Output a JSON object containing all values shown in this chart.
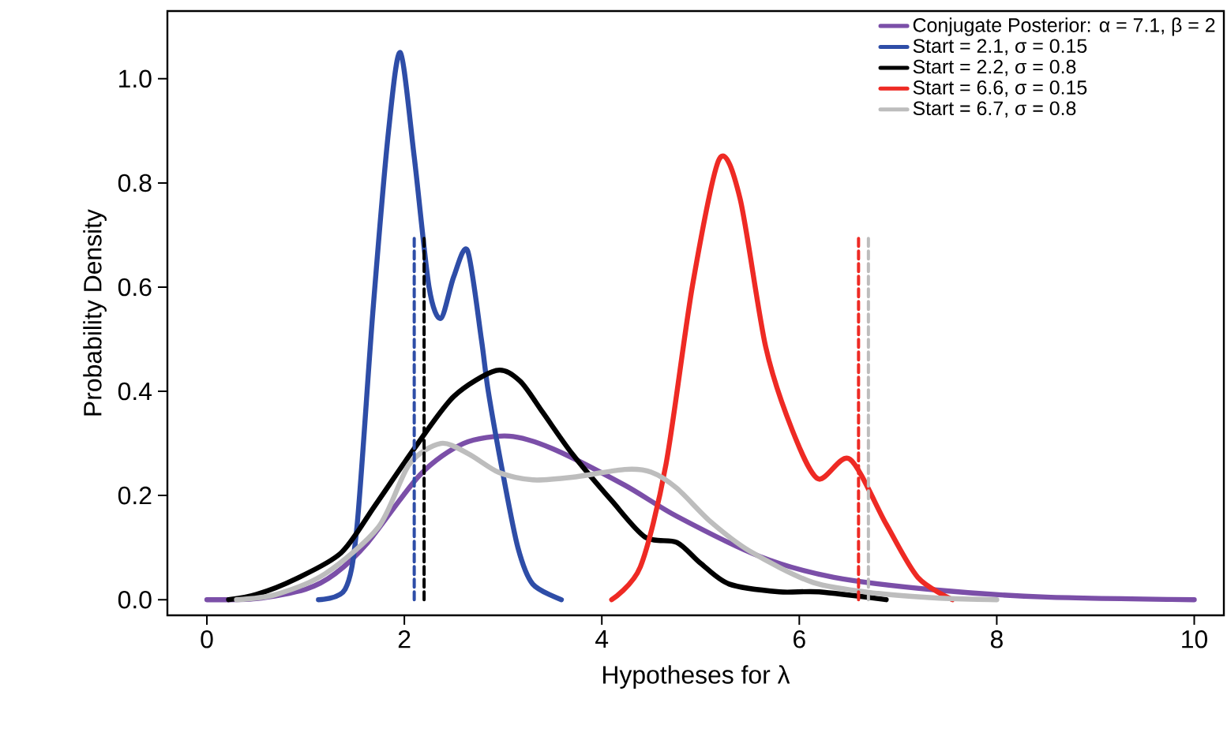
{
  "chart_data": {
    "type": "line",
    "xlabel": "Hypotheses for λ",
    "ylabel": "Probability Density",
    "xlim": [
      -0.4,
      10.3
    ],
    "ylim": [
      -0.03,
      1.13
    ],
    "xticks": [
      0,
      2,
      4,
      6,
      8,
      10
    ],
    "yticks": [
      {
        "value": 0,
        "label": "0.0"
      },
      {
        "value": 0.2,
        "label": "0.2"
      },
      {
        "value": 0.4,
        "label": "0.4"
      },
      {
        "value": 0.6,
        "label": "0.6"
      },
      {
        "value": 0.8,
        "label": "0.8"
      },
      {
        "value": 1.0,
        "label": "1.0"
      }
    ],
    "legend": "top right",
    "line_style": "solid",
    "series": [
      {
        "name": "Conjugate Posterior: α = 7.1, β = 2",
        "color": "#7b4fa8",
        "x": [
          0,
          0.5,
          1.0,
          1.3,
          1.63,
          2.16,
          2.6,
          3.06,
          3.5,
          4.23,
          4.76,
          5.6,
          6.35,
          7.42,
          8.5,
          10
        ],
        "values": [
          0,
          0.002,
          0.02,
          0.05,
          0.11,
          0.24,
          0.3,
          0.314,
          0.29,
          0.22,
          0.16,
          0.083,
          0.043,
          0.018,
          0.005,
          0
        ]
      },
      {
        "name": "Start = 2.1, σ = 0.15",
        "color": "#2e4da7",
        "x": [
          1.13,
          1.4,
          1.52,
          1.68,
          1.84,
          1.96,
          2.1,
          2.25,
          2.37,
          2.5,
          2.64,
          2.78,
          2.85,
          3.0,
          3.15,
          3.3,
          3.59
        ],
        "values": [
          0,
          0.02,
          0.14,
          0.55,
          0.9,
          1.05,
          0.85,
          0.6,
          0.54,
          0.62,
          0.67,
          0.5,
          0.4,
          0.24,
          0.1,
          0.03,
          0
        ]
      },
      {
        "name": "Start = 2.2, σ = 0.8",
        "color": "#000000",
        "x": [
          0.22,
          0.5,
          0.9,
          1.36,
          1.7,
          2.1,
          2.5,
          2.93,
          3.17,
          3.4,
          3.7,
          4.1,
          4.44,
          4.76,
          5.0,
          5.29,
          5.8,
          6.2,
          6.88
        ],
        "values": [
          0,
          0.01,
          0.04,
          0.09,
          0.18,
          0.29,
          0.39,
          0.44,
          0.42,
          0.36,
          0.28,
          0.19,
          0.12,
          0.11,
          0.07,
          0.03,
          0.015,
          0.015,
          0
        ]
      },
      {
        "name": "Start = 6.6, σ = 0.15",
        "color": "#ee2a24",
        "x": [
          4.1,
          4.39,
          4.65,
          4.92,
          5.19,
          5.4,
          5.66,
          5.93,
          6.19,
          6.51,
          6.88,
          7.2,
          7.55
        ],
        "values": [
          0,
          0.063,
          0.26,
          0.605,
          0.846,
          0.77,
          0.485,
          0.325,
          0.232,
          0.27,
          0.145,
          0.043,
          0
        ]
      },
      {
        "name": "Start = 6.7, σ = 0.8",
        "color": "#bdbdbd",
        "x": [
          0.3,
          0.7,
          1.2,
          1.74,
          2.05,
          2.37,
          2.65,
          2.96,
          3.3,
          3.7,
          4.23,
          4.5,
          4.76,
          5.1,
          5.5,
          6.14,
          6.8,
          7.42,
          8.0
        ],
        "values": [
          0,
          0.01,
          0.05,
          0.14,
          0.26,
          0.3,
          0.28,
          0.244,
          0.23,
          0.235,
          0.25,
          0.245,
          0.214,
          0.15,
          0.093,
          0.033,
          0.012,
          0.003,
          0
        ]
      },
      {
        "color": "#2e4da7",
        "line_style": "dashed",
        "x": [
          2.1,
          2.1
        ],
        "values": [
          0,
          0.7
        ]
      },
      {
        "color": "#000000",
        "line_style": "dashed",
        "x": [
          2.2,
          2.2
        ],
        "values": [
          0,
          0.7
        ]
      },
      {
        "color": "#ee2a24",
        "line_style": "dashed",
        "x": [
          6.6,
          6.6
        ],
        "values": [
          0,
          0.7
        ]
      },
      {
        "color": "#bdbdbd",
        "line_style": "dashed",
        "x": [
          6.7,
          6.7
        ],
        "values": [
          0,
          0.7
        ]
      }
    ]
  }
}
